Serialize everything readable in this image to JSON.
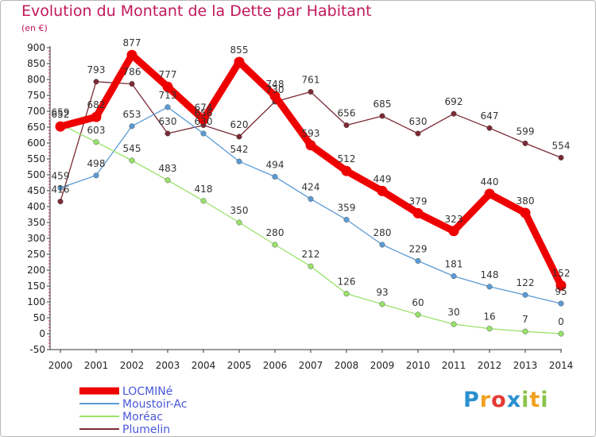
{
  "chart_data": {
    "type": "line",
    "title": "Evolution du Montant de la Dette par Habitant",
    "subtitle": "(en €)",
    "x": [
      "2000",
      "2001",
      "2002",
      "2003",
      "2004",
      "2005",
      "2006",
      "2007",
      "2008",
      "2009",
      "2010",
      "2011",
      "2012",
      "2013",
      "2014"
    ],
    "ylim": [
      -50,
      900
    ],
    "yticks": [
      -50,
      0,
      50,
      100,
      150,
      200,
      250,
      300,
      350,
      400,
      450,
      500,
      550,
      600,
      650,
      700,
      750,
      800,
      850,
      900
    ],
    "grid": false,
    "legend_position": "bottom-left",
    "series": [
      {
        "name": "Plumelin",
        "color": "#7b2a35",
        "values": [
          416,
          793,
          786,
          630,
          656,
          620,
          730,
          761,
          656,
          685,
          630,
          692,
          647,
          599,
          554
        ]
      },
      {
        "name": "Moustoir-Ac",
        "color": "#5b9bd5",
        "values": [
          459,
          498,
          653,
          713,
          630,
          542,
          494,
          424,
          359,
          280,
          229,
          181,
          148,
          122,
          95
        ]
      },
      {
        "name": "Moréac",
        "color": "#99e26a",
        "values": [
          659,
          603,
          545,
          483,
          418,
          350,
          280,
          212,
          126,
          93,
          60,
          30,
          16,
          7,
          0
        ]
      },
      {
        "name": "LOCMINé",
        "color": "#ee0000",
        "values": [
          652,
          682,
          877,
          777,
          674,
          855,
          748,
          593,
          512,
          449,
          379,
          323,
          440,
          380,
          152
        ]
      }
    ],
    "legend": [
      "LOCMINé",
      "Moustoir-Ac",
      "Moréac",
      "Plumelin"
    ]
  },
  "brand": {
    "letters": [
      "P",
      "r",
      "o",
      "x",
      "i",
      "t",
      "i"
    ],
    "colors": [
      "#2a8fd0",
      "#f0a020",
      "#e53935",
      "#2a8fd0",
      "#8bc34a",
      "#f0a020",
      "#8bc34a"
    ]
  }
}
